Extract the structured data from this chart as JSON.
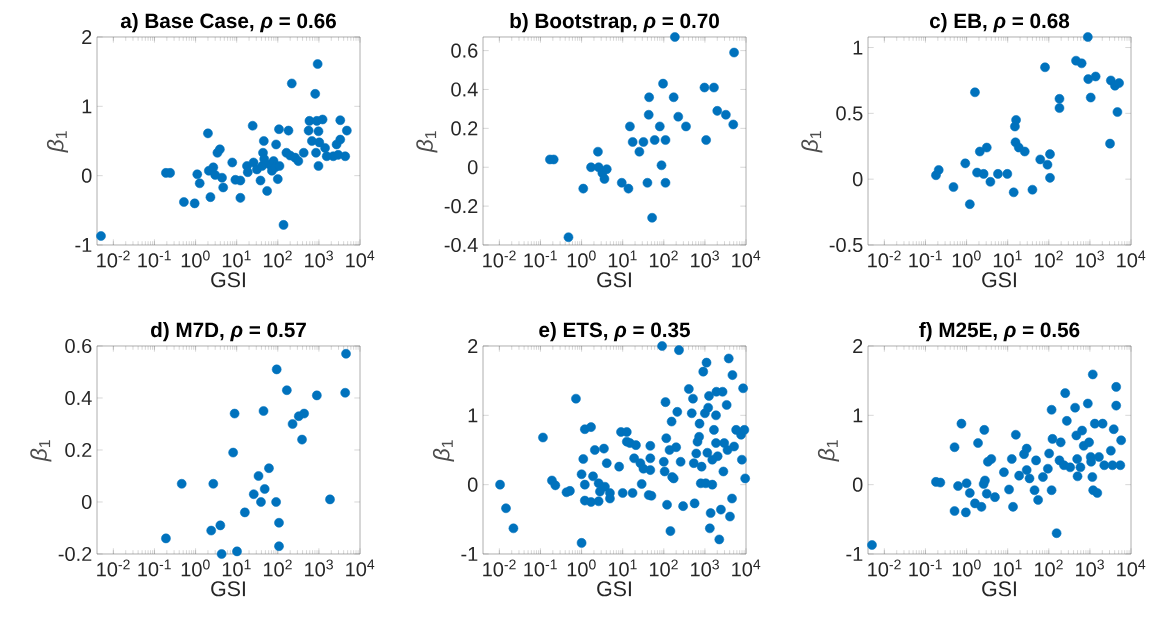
{
  "chart_data": [
    {
      "type": "scatter",
      "title": "a) Base Case, *ρ* = 0.66",
      "xlabel": "GSI",
      "ylabel": "*β*$_{1}$",
      "log": "x",
      "marker": "circle",
      "color": "#0072bd",
      "xlim": [
        0.004,
        10000
      ],
      "ylim": [
        -1,
        2
      ],
      "xticks": [
        {
          "value": 0.01,
          "label": "10$^{-2}$"
        },
        {
          "value": 0.1,
          "label": "10$^{-1}$"
        },
        {
          "value": 1,
          "label": "10$^{0}$"
        },
        {
          "value": 10,
          "label": "10$^{1}$"
        },
        {
          "value": 100,
          "label": "10$^{2}$"
        },
        {
          "value": 1000,
          "label": "10$^{3}$"
        },
        {
          "value": 10000,
          "label": "10$^{4}$"
        }
      ],
      "yticks": [
        -1,
        0,
        1,
        2
      ],
      "x": [
        0.005,
        0.19,
        0.24,
        0.52,
        0.95,
        1.1,
        1.26,
        2.0,
        2.3,
        2.1,
        2.7,
        3.0,
        3.4,
        3.9,
        4.4,
        4.7,
        7.8,
        9.3,
        12.3,
        12.3,
        17.8,
        18.6,
        24.5,
        25.7,
        31,
        38,
        41.6,
        43.7,
        45.7,
        46.8,
        55,
        63,
        72,
        79,
        87,
        91,
        100,
        110,
        107,
        138,
        182,
        219,
        162,
        200,
        263,
        316,
        427,
        562,
        589,
        676,
        813,
        933,
        891,
        977,
        1023,
        851,
        977,
        1230,
        1413,
        1549,
        2239,
        2951,
        2692,
        3311,
        3311,
        4365,
        4786
      ],
      "values": [
        -0.87,
        0.04,
        0.04,
        -0.38,
        -0.4,
        0.02,
        -0.11,
        0.61,
        -0.31,
        0.07,
        0.12,
        0.01,
        0.33,
        0.38,
        -0.03,
        -0.17,
        0.19,
        -0.06,
        -0.07,
        -0.32,
        0.14,
        0.05,
        0.72,
        0.19,
        0.09,
        -0.07,
        0.14,
        0.33,
        0.5,
        0.24,
        -0.22,
        0.16,
        0.07,
        0.21,
        0.12,
        0.45,
        -0.05,
        0.14,
        0.67,
        -0.71,
        0.65,
        1.33,
        0.33,
        0.29,
        0.26,
        0.21,
        0.33,
        0.65,
        0.79,
        0.5,
        1.18,
        1.61,
        0.79,
        0.64,
        0.48,
        0.33,
        0.14,
        0.81,
        0.4,
        0.28,
        0.28,
        0.3,
        0.45,
        0.52,
        0.8,
        0.28,
        0.65
      ]
    },
    {
      "type": "scatter",
      "title": "b) Bootstrap, *ρ* = 0.70",
      "xlabel": "GSI",
      "ylabel": "*β*$_{1}$",
      "log": "x",
      "marker": "circle",
      "color": "#0072bd",
      "xlim": [
        0.004,
        10000
      ],
      "ylim": [
        -0.4,
        0.67
      ],
      "xticks": [
        {
          "value": 0.01,
          "label": "10$^{-2}$"
        },
        {
          "value": 0.1,
          "label": "10$^{-1}$"
        },
        {
          "value": 1,
          "label": "10$^{0}$"
        },
        {
          "value": 10,
          "label": "10$^{1}$"
        },
        {
          "value": 100,
          "label": "10$^{2}$"
        },
        {
          "value": 1000,
          "label": "10$^{3}$"
        },
        {
          "value": 10000,
          "label": "10$^{4}$"
        }
      ],
      "yticks": [
        -0.4,
        -0.2,
        0,
        0.2,
        0.4,
        0.6
      ],
      "x": [
        0.17,
        0.21,
        0.48,
        1.1,
        1.7,
        2.5,
        2.6,
        3.2,
        4.1,
        3.6,
        9.5,
        13.8,
        15,
        17.5,
        25.5,
        32,
        40,
        44,
        43,
        52,
        60,
        80,
        88,
        96,
        110,
        110,
        186,
        174,
        225,
        347,
        977,
        1072,
        1660,
        2000,
        3236,
        4898,
        5129
      ],
      "values": [
        0.04,
        0.04,
        -0.36,
        -0.11,
        0.0,
        0.08,
        0.0,
        -0.03,
        -0.01,
        -0.06,
        -0.08,
        -0.11,
        0.21,
        0.13,
        0.08,
        0.13,
        -0.08,
        0.36,
        0.27,
        -0.26,
        0.14,
        0.21,
        0.01,
        0.43,
        0.14,
        -0.08,
        0.67,
        0.36,
        0.26,
        0.21,
        0.41,
        0.14,
        0.41,
        0.29,
        0.27,
        0.22,
        0.59
      ]
    },
    {
      "type": "scatter",
      "title": "c) EB, *ρ* = 0.68",
      "xlabel": "GSI",
      "ylabel": "*β*$_{1}$",
      "log": "x",
      "marker": "circle",
      "color": "#0072bd",
      "xlim": [
        0.004,
        10000
      ],
      "ylim": [
        -0.5,
        1.08
      ],
      "xticks": [
        {
          "value": 0.01,
          "label": "10$^{-2}$"
        },
        {
          "value": 0.1,
          "label": "10$^{-1}$"
        },
        {
          "value": 1,
          "label": "10$^{0}$"
        },
        {
          "value": 10,
          "label": "10$^{1}$"
        },
        {
          "value": 100,
          "label": "10$^{2}$"
        },
        {
          "value": 1000,
          "label": "10$^{3}$"
        },
        {
          "value": 10000,
          "label": "10$^{4}$"
        }
      ],
      "yticks": [
        -0.5,
        0,
        0.5,
        1
      ],
      "x": [
        0.18,
        0.21,
        0.48,
        0.93,
        1.2,
        1.6,
        1.8,
        2.1,
        2.6,
        3.1,
        3.8,
        5.8,
        9.8,
        14,
        15,
        16,
        15.5,
        18.6,
        26,
        40,
        62,
        81,
        93,
        107,
        107,
        182,
        182,
        460,
        630,
        891,
        912,
        1047,
        1380,
        3090,
        3236,
        4074,
        5129,
        4677
      ],
      "values": [
        0.03,
        0.07,
        -0.06,
        0.12,
        -0.19,
        0.66,
        0.05,
        0.21,
        0.04,
        0.24,
        -0.02,
        0.04,
        0.04,
        -0.1,
        0.4,
        0.45,
        0.28,
        0.24,
        0.21,
        -0.08,
        0.15,
        0.85,
        0.11,
        0.19,
        0.01,
        0.61,
        0.54,
        0.9,
        0.88,
        1.08,
        0.76,
        0.62,
        0.78,
        0.27,
        0.75,
        0.71,
        0.73,
        0.51
      ]
    },
    {
      "type": "scatter",
      "title": "d) M7D, *ρ* = 0.57",
      "xlabel": "GSI",
      "ylabel": "*β*$_{1}$",
      "log": "x",
      "marker": "circle",
      "color": "#0072bd",
      "xlim": [
        0.004,
        10000
      ],
      "ylim": [
        -0.2,
        0.6
      ],
      "xticks": [
        {
          "value": 0.01,
          "label": "10$^{-2}$"
        },
        {
          "value": 0.1,
          "label": "10$^{-1}$"
        },
        {
          "value": 1,
          "label": "10$^{0}$"
        },
        {
          "value": 10,
          "label": "10$^{1}$"
        },
        {
          "value": 100,
          "label": "10$^{2}$"
        },
        {
          "value": 1000,
          "label": "10$^{3}$"
        },
        {
          "value": 10000,
          "label": "10$^{4}$"
        }
      ],
      "yticks": [
        -0.2,
        0,
        0.2,
        0.4,
        0.6
      ],
      "x": [
        0.19,
        0.46,
        2.4,
        2.7,
        4.0,
        4.3,
        8.2,
        8.9,
        10.2,
        15.8,
        26,
        34,
        39,
        45,
        48,
        61,
        91,
        94,
        107,
        107,
        166,
        229,
        324,
        389,
        437,
        891,
        1862,
        4365,
        4571
      ],
      "values": [
        -0.14,
        0.07,
        -0.11,
        0.07,
        -0.09,
        -0.2,
        0.19,
        0.34,
        -0.19,
        -0.04,
        0.03,
        0.1,
        0.0,
        0.35,
        0.05,
        0.13,
        0.0,
        0.51,
        -0.08,
        -0.17,
        0.43,
        0.3,
        0.33,
        0.24,
        0.34,
        0.41,
        0.01,
        0.42,
        0.57
      ]
    },
    {
      "type": "scatter",
      "title": "e) ETS, *ρ* = 0.35",
      "xlabel": "GSI",
      "ylabel": "*β*$_{1}$",
      "log": "x",
      "marker": "circle",
      "color": "#0072bd",
      "xlim": [
        0.004,
        10000
      ],
      "ylim": [
        -1,
        2
      ],
      "xticks": [
        {
          "value": 0.01,
          "label": "10$^{-2}$"
        },
        {
          "value": 0.1,
          "label": "10$^{-1}$"
        },
        {
          "value": 1,
          "label": "10$^{0}$"
        },
        {
          "value": 10,
          "label": "10$^{1}$"
        },
        {
          "value": 100,
          "label": "10$^{2}$"
        },
        {
          "value": 1000,
          "label": "10$^{3}$"
        },
        {
          "value": 10000,
          "label": "10$^{4}$"
        }
      ],
      "yticks": [
        -1,
        0,
        1,
        2
      ],
      "x": [
        0.0104,
        0.0145,
        0.022,
        0.115,
        0.19,
        0.23,
        0.43,
        0.52,
        0.73,
        1.0,
        1.0,
        1.1,
        1.2,
        1.7,
        1.2,
        1.2,
        1.7,
        1.9,
        2.1,
        2.6,
        2.6,
        2.8,
        3.5,
        3.7,
        4.1,
        4.9,
        4.9,
        8.2,
        9.1,
        10,
        12.6,
        12.6,
        15,
        21,
        17.4,
        19,
        27,
        29,
        32,
        43,
        47,
        47,
        50,
        47,
        91,
        100,
        105,
        110,
        115,
        120,
        138,
        145,
        155,
        160,
        174,
        200,
        213,
        234,
        257,
        295,
        407,
        513,
        537,
        562,
        479,
        661,
        724,
        741,
        794,
        832,
        912,
        1000,
        1047,
        1096,
        1148,
        1202,
        1259,
        1318,
        1380,
        1514,
        1660,
        1862,
        1905,
        2042,
        2239,
        2455,
        2692,
        2818,
        2951,
        3388,
        3548,
        3802,
        4074,
        4571,
        4677,
        5129,
        5754,
        7586,
        7943,
        8511,
        9120,
        9550,
        617,
        1514,
        1862
      ],
      "values": [
        0.0,
        -0.34,
        -0.63,
        0.68,
        0.06,
        -0.01,
        -0.11,
        -0.09,
        1.24,
        -0.84,
        0.15,
        0.37,
        0.8,
        0.83,
        0.0,
        -0.23,
        -0.25,
        0.12,
        0.5,
        -0.24,
        0.02,
        -0.1,
        0.52,
        -0.03,
        0.31,
        -0.2,
        -0.12,
        0.26,
        0.76,
        -0.12,
        0.62,
        0.76,
        0.6,
        0.57,
        -0.12,
        0.38,
        0.31,
        0.01,
        0.23,
        -0.15,
        0.56,
        0.38,
        -0.16,
        0.21,
        2.0,
        0.33,
        0.19,
        1.19,
        0.67,
        -0.29,
        0.5,
        -0.67,
        0.91,
        0.11,
        0.09,
        0.54,
        1.05,
        1.94,
        0.33,
        -0.31,
        1.38,
        1.24,
        0.31,
        -0.27,
        1.03,
        0.62,
        0.69,
        0.88,
        0.02,
        0.26,
        1.63,
        1.03,
        0.02,
        1.76,
        0.46,
        1.11,
        1.28,
        -0.63,
        -0.41,
        0.0,
        0.79,
        1.0,
        1.34,
        0.41,
        -0.79,
        -0.36,
        1.34,
        0.19,
        0.6,
        1.15,
        0.5,
        1.82,
        -0.46,
        -0.2,
        1.58,
        0.55,
        0.79,
        0.72,
        0.36,
        1.39,
        0.79,
        0.09,
        0.45,
        0.36,
        0.6
      ]
    },
    {
      "type": "scatter",
      "title": "f) M25E, *ρ* = 0.56",
      "xlabel": "GSI",
      "ylabel": "*β*$_{1}$",
      "log": "x",
      "marker": "circle",
      "color": "#0072bd",
      "xlim": [
        0.004,
        10000
      ],
      "ylim": [
        -1,
        2
      ],
      "xticks": [
        {
          "value": 0.01,
          "label": "10$^{-2}$"
        },
        {
          "value": 0.1,
          "label": "10$^{-1}$"
        },
        {
          "value": 1,
          "label": "10$^{0}$"
        },
        {
          "value": 10,
          "label": "10$^{1}$"
        },
        {
          "value": 100,
          "label": "10$^{2}$"
        },
        {
          "value": 1000,
          "label": "10$^{3}$"
        },
        {
          "value": 10000,
          "label": "10$^{4}$"
        }
      ],
      "yticks": [
        -1,
        0,
        1,
        2
      ],
      "x": [
        0.005,
        0.18,
        0.23,
        0.51,
        0.75,
        0.62,
        0.51,
        0.96,
        1.0,
        1.2,
        1.6,
        1.9,
        2.3,
        2.7,
        2.8,
        3.1,
        3.3,
        4.0,
        4.9,
        2.6,
        8.1,
        10.8,
        13.5,
        12.6,
        15.8,
        19,
        25,
        29,
        29,
        34,
        45,
        49,
        55,
        72,
        95,
        102,
        117,
        117,
        123,
        155,
        182,
        195,
        251,
        275,
        234,
        331,
        437,
        468,
        490,
        501,
        589,
        646,
        708,
        891,
        955,
        1047,
        1072,
        1148,
        1175,
        1202,
        1514,
        1318,
        1660,
        2042,
        2239,
        3548,
        3236,
        3802,
        4365,
        4365,
        5495,
        5754
      ],
      "values": [
        -0.87,
        0.04,
        0.03,
        0.54,
        0.88,
        -0.02,
        -0.38,
        -0.4,
        0.02,
        -0.12,
        -0.27,
        0.6,
        -0.32,
        0.79,
        0.06,
        -0.13,
        0.33,
        0.37,
        -0.18,
        0.01,
        0.18,
        -0.07,
        -0.32,
        0.37,
        0.72,
        0.13,
        0.44,
        0.52,
        0.21,
        0.09,
        -0.08,
        0.35,
        -0.22,
        0.11,
        0.23,
        0.45,
        -0.08,
        1.08,
        0.66,
        -0.7,
        0.35,
        0.61,
        1.32,
        0.92,
        0.28,
        0.25,
        1.11,
        0.71,
        0.37,
        0.12,
        0.25,
        0.78,
        0.56,
        1.17,
        0.61,
        0.4,
        0.33,
        0.11,
        1.59,
        -0.08,
        -0.12,
        0.88,
        0.4,
        0.88,
        0.28,
        0.28,
        0.49,
        0.8,
        1.14,
        1.41,
        0.28,
        0.64
      ]
    }
  ]
}
